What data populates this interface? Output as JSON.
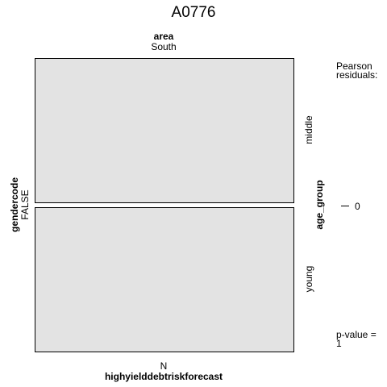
{
  "chart_data": {
    "type": "mosaic",
    "title": "A0776",
    "variables": {
      "top": {
        "name": "area",
        "levels": [
          "South"
        ]
      },
      "left": {
        "name": "gendercode",
        "levels": [
          "FALSE"
        ]
      },
      "right": {
        "name": "age_group",
        "levels": [
          "middle",
          "young"
        ]
      },
      "bottom": {
        "name": "highyielddebtriskforecast",
        "levels": [
          "N"
        ]
      }
    },
    "cells": [
      {
        "area": "South",
        "gendercode": "FALSE",
        "age_group": "middle",
        "highyielddebtriskforecast": "N",
        "proportion": 0.5,
        "pearson_residual": 0
      },
      {
        "area": "South",
        "gendercode": "FALSE",
        "age_group": "young",
        "highyielddebtriskforecast": "N",
        "proportion": 0.5,
        "pearson_residual": 0
      }
    ],
    "legend": {
      "title": "Pearson\nresiduals:",
      "ticks": [
        0
      ]
    },
    "pvalue_label": "p-value =\n1",
    "colors": {
      "cell_fill": "#e3e3e3",
      "cell_border": "#000000"
    }
  }
}
